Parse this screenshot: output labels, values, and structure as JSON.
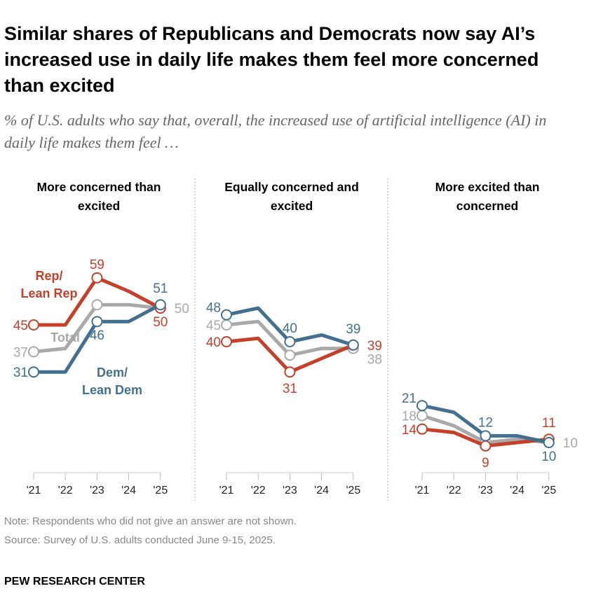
{
  "title": "Similar shares of Republicans and Democrats now say AI’s increased use in daily life makes them feel more concerned than excited",
  "subtitle": "% of U.S. adults who say that, overall, the increased use of artificial intelligence (AI) in daily life makes them feel …",
  "note": "Note: Respondents who did not give an answer are not shown.",
  "source": "Source: Survey of U.S. adults conducted June 9-15, 2025.",
  "logo": "PEW RESEARCH CENTER",
  "colors": {
    "rep": "#C5402A",
    "dem": "#44708F",
    "total": "#A9A9A9"
  },
  "chart_data": [
    {
      "type": "line",
      "title": "More concerned than excited",
      "categories": [
        "'21",
        "'22",
        "'23",
        "'24",
        "'25"
      ],
      "series": [
        {
          "name": "Rep/Lean Rep",
          "key": "rep",
          "values": [
            45,
            45,
            59,
            55,
            50
          ]
        },
        {
          "name": "Total",
          "key": "total",
          "values": [
            37,
            38,
            51,
            51,
            50
          ]
        },
        {
          "name": "Dem/Lean Dem",
          "key": "dem",
          "values": [
            31,
            31,
            46,
            46,
            51
          ]
        }
      ]
    },
    {
      "type": "line",
      "title": "Equally concerned and excited",
      "categories": [
        "'21",
        "'22",
        "'23",
        "'24",
        "'25"
      ],
      "series": [
        {
          "key": "dem",
          "values": [
            48,
            50,
            40,
            42,
            39
          ]
        },
        {
          "key": "total",
          "values": [
            45,
            46,
            36,
            38,
            38
          ]
        },
        {
          "key": "rep",
          "values": [
            40,
            41,
            31,
            35,
            39
          ]
        }
      ]
    },
    {
      "type": "line",
      "title": "More excited than concerned",
      "categories": [
        "'21",
        "'22",
        "'23",
        "'24",
        "'25"
      ],
      "series": [
        {
          "key": "dem",
          "values": [
            21,
            19,
            12,
            12,
            10
          ]
        },
        {
          "key": "total",
          "values": [
            18,
            15,
            10,
            11,
            10
          ]
        },
        {
          "key": "rep",
          "values": [
            14,
            13,
            9,
            10,
            11
          ]
        }
      ]
    }
  ]
}
